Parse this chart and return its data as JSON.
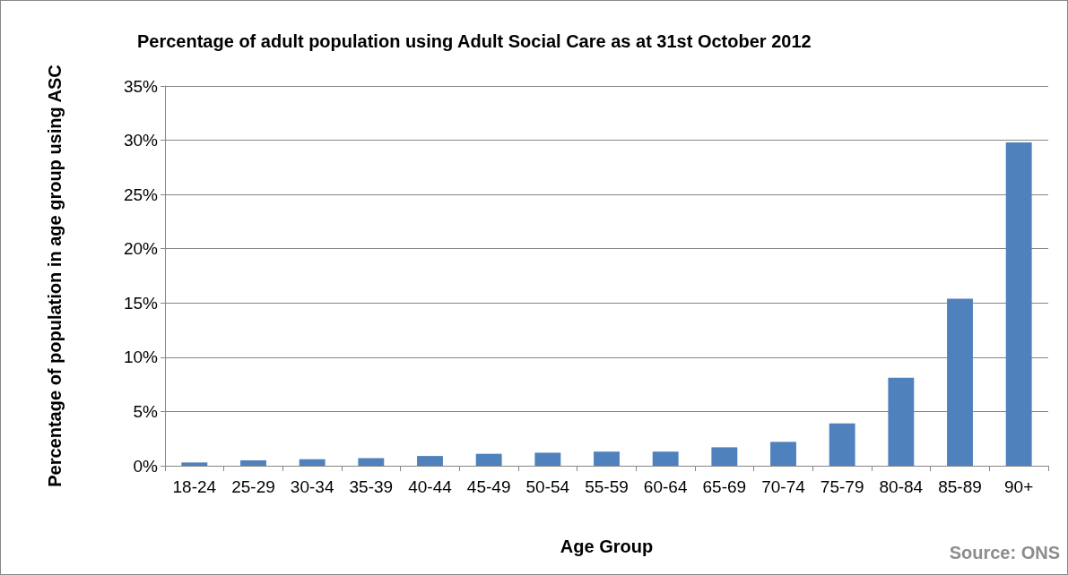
{
  "chart_data": {
    "type": "bar",
    "title": "Percentage of adult population using Adult Social Care as at 31st October 2012",
    "xlabel": "Age Group",
    "ylabel": "Percentage of population in age group using ASC",
    "categories": [
      "18-24",
      "25-29",
      "30-34",
      "35-39",
      "40-44",
      "45-49",
      "50-54",
      "55-59",
      "60-64",
      "65-69",
      "70-74",
      "75-79",
      "80-84",
      "85-89",
      "90+"
    ],
    "values": [
      0.3,
      0.5,
      0.6,
      0.7,
      0.9,
      1.1,
      1.2,
      1.3,
      1.3,
      1.7,
      2.2,
      3.9,
      8.1,
      15.4,
      29.8
    ],
    "color": "#4f81bd",
    "ylim": [
      0,
      35
    ],
    "yticks": [
      {
        "value": 0,
        "label": "0%"
      },
      {
        "value": 5,
        "label": "5%"
      },
      {
        "value": 10,
        "label": "10%"
      },
      {
        "value": 15,
        "label": "15%"
      },
      {
        "value": 20,
        "label": "20%"
      },
      {
        "value": 25,
        "label": "25%"
      },
      {
        "value": 30,
        "label": "30%"
      },
      {
        "value": 35,
        "label": "35%"
      }
    ],
    "grid": "y",
    "annotations": [
      "Source: ONS"
    ]
  }
}
